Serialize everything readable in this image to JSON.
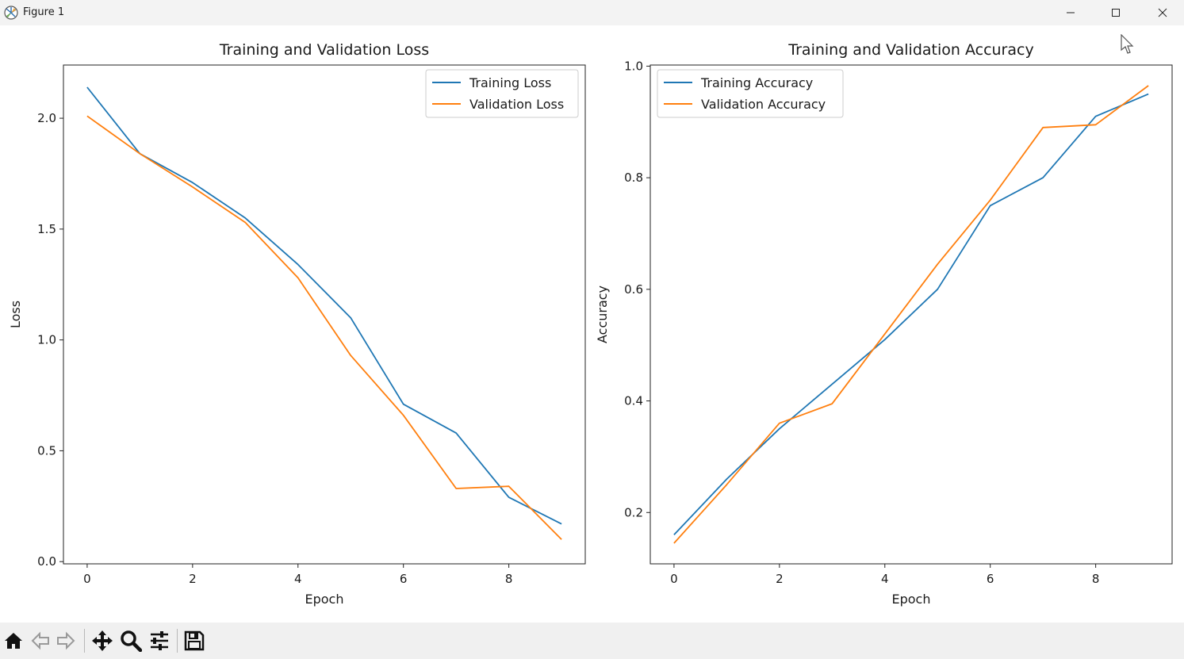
{
  "window": {
    "title": "Figure 1"
  },
  "colors": {
    "training": "#1f77b4",
    "validation": "#ff7f0e",
    "toolbar_bg": "#f0f0f0",
    "titlebar_bg": "#f3f3f3"
  },
  "toolbar": {
    "tools": [
      "home-icon",
      "back-arrow-icon",
      "forward-arrow-icon",
      "pan-move-icon",
      "zoom-magnifier-icon",
      "configure-subplots-icon",
      "save-floppy-icon"
    ]
  },
  "chart_data": [
    {
      "type": "line",
      "title": "Training and Validation Loss",
      "xlabel": "Epoch",
      "ylabel": "Loss",
      "xlim": [
        -0.45,
        9.45
      ],
      "ylim": [
        -0.01,
        2.24
      ],
      "xticks": [
        0,
        2,
        4,
        6,
        8
      ],
      "yticks": [
        0.0,
        0.5,
        1.0,
        1.5,
        2.0
      ],
      "ytick_labels": [
        "0.0",
        "0.5",
        "1.0",
        "1.5",
        "2.0"
      ],
      "grid": false,
      "legend": "upper right",
      "x": [
        0,
        1,
        2,
        3,
        4,
        5,
        6,
        7,
        8,
        9
      ],
      "series": [
        {
          "name": "Training Loss",
          "color": "#1f77b4",
          "values": [
            2.14,
            1.84,
            1.71,
            1.55,
            1.34,
            1.1,
            0.71,
            0.58,
            0.29,
            0.17
          ]
        },
        {
          "name": "Validation Loss",
          "color": "#ff7f0e",
          "values": [
            2.01,
            1.84,
            1.69,
            1.53,
            1.28,
            0.93,
            0.66,
            0.33,
            0.34,
            0.1
          ]
        }
      ]
    },
    {
      "type": "line",
      "title": "Training and Validation Accuracy",
      "xlabel": "Epoch",
      "ylabel": "Accuracy",
      "xlim": [
        -0.45,
        9.45
      ],
      "ylim": [
        0.108,
        1.002
      ],
      "xticks": [
        0,
        2,
        4,
        6,
        8
      ],
      "yticks": [
        0.2,
        0.4,
        0.6,
        0.8,
        1.0
      ],
      "ytick_labels": [
        "0.2",
        "0.4",
        "0.6",
        "0.8",
        "1.0"
      ],
      "grid": false,
      "legend": "upper left",
      "x": [
        0,
        1,
        2,
        3,
        4,
        5,
        6,
        7,
        8,
        9
      ],
      "series": [
        {
          "name": "Training Accuracy",
          "color": "#1f77b4",
          "values": [
            0.16,
            0.26,
            0.35,
            0.43,
            0.51,
            0.6,
            0.75,
            0.8,
            0.91,
            0.95
          ]
        },
        {
          "name": "Validation Accuracy",
          "color": "#ff7f0e",
          "values": [
            0.145,
            0.25,
            0.36,
            0.395,
            0.52,
            0.645,
            0.76,
            0.89,
            0.895,
            0.965
          ]
        }
      ]
    }
  ]
}
